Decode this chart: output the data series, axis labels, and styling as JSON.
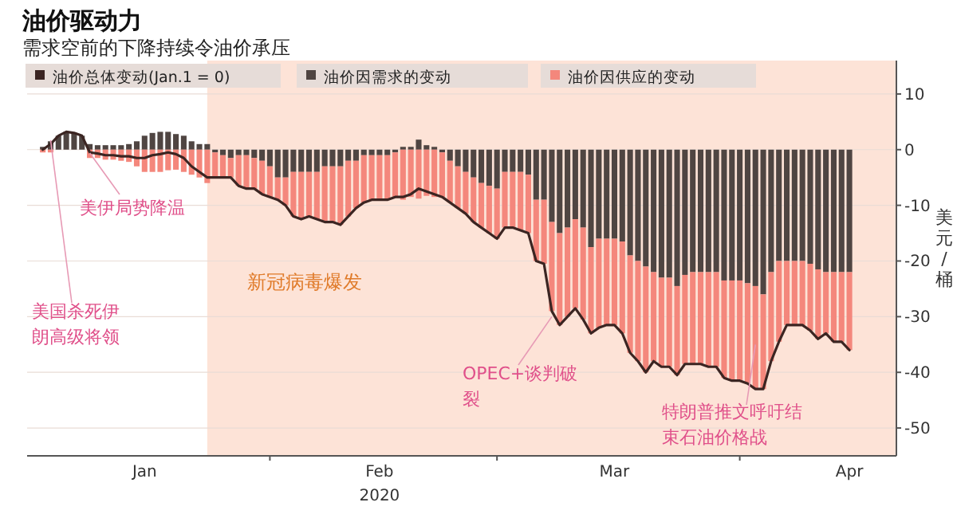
{
  "chart_data": {
    "type": "bar",
    "title": "油价驱动力",
    "subtitle": "需求空前的下降持续令油价承压",
    "xlabel": "2020",
    "ylabel": "美元/桶",
    "x": [
      "2020-01-03",
      "2020-01-04",
      "2020-01-05",
      "2020-01-06",
      "2020-01-07",
      "2020-01-08",
      "2020-01-09",
      "2020-01-10",
      "2020-01-11",
      "2020-01-12",
      "2020-01-13",
      "2020-01-14",
      "2020-01-15",
      "2020-01-16",
      "2020-01-17",
      "2020-01-18",
      "2020-01-19",
      "2020-01-20",
      "2020-01-21",
      "2020-01-22",
      "2020-01-23",
      "2020-01-24",
      "2020-01-25",
      "2020-01-26",
      "2020-01-27",
      "2020-01-28",
      "2020-01-29",
      "2020-01-30",
      "2020-01-31",
      "2020-02-01",
      "2020-02-02",
      "2020-02-03",
      "2020-02-04",
      "2020-02-05",
      "2020-02-06",
      "2020-02-07",
      "2020-02-08",
      "2020-02-09",
      "2020-02-10",
      "2020-02-11",
      "2020-02-12",
      "2020-02-13",
      "2020-02-14",
      "2020-02-15",
      "2020-02-16",
      "2020-02-17",
      "2020-02-18",
      "2020-02-19",
      "2020-02-20",
      "2020-02-21",
      "2020-02-22",
      "2020-02-23",
      "2020-02-24",
      "2020-02-25",
      "2020-02-26",
      "2020-02-27",
      "2020-02-28",
      "2020-02-29",
      "2020-03-01",
      "2020-03-02",
      "2020-03-03",
      "2020-03-04",
      "2020-03-05",
      "2020-03-06",
      "2020-03-07",
      "2020-03-08",
      "2020-03-09",
      "2020-03-10",
      "2020-03-11",
      "2020-03-12",
      "2020-03-13",
      "2020-03-14",
      "2020-03-15",
      "2020-03-16",
      "2020-03-17",
      "2020-03-18",
      "2020-03-19",
      "2020-03-20",
      "2020-03-21",
      "2020-03-22",
      "2020-03-23",
      "2020-03-24",
      "2020-03-25",
      "2020-03-26",
      "2020-03-27",
      "2020-03-28",
      "2020-03-29",
      "2020-03-30",
      "2020-03-31",
      "2020-04-01",
      "2020-04-02",
      "2020-04-03",
      "2020-04-04",
      "2020-04-05",
      "2020-04-06",
      "2020-04-07",
      "2020-04-08",
      "2020-04-09",
      "2020-04-10",
      "2020-04-11",
      "2020-04-12",
      "2020-04-13",
      "2020-04-14",
      "2020-04-15"
    ],
    "stacked": true,
    "series": [
      {
        "name": "油价因需求的变动",
        "color": "#4f4542",
        "values": [
          0.5,
          1.5,
          2.5,
          3.2,
          3,
          2.5,
          1,
          0.8,
          0.8,
          0.8,
          0.8,
          1,
          1.5,
          2.5,
          3,
          3.2,
          3.2,
          2.8,
          2.5,
          1.5,
          1,
          1,
          -0.5,
          -1,
          -1.5,
          -1,
          -1,
          -1.5,
          -2,
          -3,
          -5,
          -5,
          -4,
          -4,
          -4,
          -4,
          -3,
          -3,
          -3,
          -2,
          -2,
          -1,
          -1,
          -1,
          -1,
          -0.5,
          0.5,
          0.5,
          1.8,
          0.8,
          0.5,
          -0.5,
          -2,
          -3,
          -4,
          -5,
          -6,
          -6.5,
          -7,
          -4,
          -4,
          -4,
          -4.5,
          -9,
          -9,
          -13,
          -15,
          -14,
          -12.5,
          -14,
          -17.5,
          -16,
          -16,
          -16,
          -16.5,
          -19,
          -20,
          -21,
          -22,
          -23,
          -23,
          -24.5,
          -22.5,
          -22,
          -22,
          -22,
          -22,
          -23.5,
          -23.5,
          -23.5,
          -24,
          -24.5,
          -26,
          -22,
          -20,
          -20,
          -20,
          -20,
          -20.5,
          -21.5,
          -22,
          -22,
          -22,
          -22
        ]
      },
      {
        "name": "油价因供应的变动",
        "color": "#f4877c",
        "values": [
          -0.5,
          -0.5,
          0,
          0,
          0,
          0,
          -1.5,
          -1.5,
          -1.8,
          -1.8,
          -2,
          -2.2,
          -3,
          -4,
          -4,
          -4,
          -3.7,
          -3.6,
          -4,
          -4.5,
          -5,
          -6,
          -4.5,
          -4,
          -3.5,
          -5.5,
          -6,
          -5.5,
          -6,
          -5.5,
          -4,
          -5,
          -8,
          -8.5,
          -8,
          -8.5,
          -10,
          -10,
          -10.5,
          -10,
          -8.5,
          -8.5,
          -8,
          -8,
          -8,
          -8,
          -9,
          -8.5,
          -8.8,
          -8.3,
          -8.5,
          -8,
          -7.5,
          -7.5,
          -7.5,
          -8,
          -8,
          -8.5,
          -9,
          -10,
          -10,
          -10.5,
          -10.5,
          -11,
          -11.5,
          -16,
          -16.5,
          -16,
          -16,
          -16.5,
          -15.5,
          -16,
          -15.5,
          -15.5,
          -16.5,
          -17.5,
          -18,
          -19,
          -16,
          -16,
          -16,
          -16,
          -16,
          -16.5,
          -16.5,
          -17,
          -17,
          -17.5,
          -18,
          -18,
          -18,
          -18.5,
          -17,
          -16,
          -14.5,
          -11.5,
          -11.5,
          -11.5,
          -12,
          -12.5,
          -11,
          -12.5,
          -12.5,
          -14
        ]
      },
      {
        "name": "油价总体变动(Jan.1 = 0)",
        "type": "line",
        "color": "#3b2522",
        "values": [
          0,
          1,
          2.5,
          3.2,
          3,
          2.5,
          -0.5,
          -0.7,
          -1,
          -1,
          -1.2,
          -1.2,
          -1.5,
          -1.5,
          -1,
          -0.8,
          -0.5,
          -0.8,
          -1.5,
          -3,
          -4,
          -5,
          -5,
          -5,
          -5,
          -6.5,
          -7,
          -7,
          -8,
          -8.5,
          -9,
          -10,
          -12,
          -12.5,
          -12,
          -12.5,
          -13,
          -13,
          -13.5,
          -12,
          -10.5,
          -9.5,
          -9,
          -9,
          -9,
          -8.5,
          -8.5,
          -8,
          -7,
          -7.5,
          -8,
          -8.5,
          -9.5,
          -10.5,
          -11.5,
          -13,
          -14,
          -15,
          -16,
          -14,
          -14,
          -14.5,
          -15,
          -20,
          -20.5,
          -29,
          -31.5,
          -30,
          -28.5,
          -30.5,
          -33,
          -32,
          -31.5,
          -31.5,
          -33,
          -36.5,
          -38,
          -40,
          -38,
          -39,
          -39,
          -40.5,
          -38.5,
          -38.5,
          -38.5,
          -39,
          -39,
          -41,
          -41.5,
          -41.5,
          -42,
          -43,
          -43,
          -38,
          -34.5,
          -31.5,
          -31.5,
          -31.5,
          -32.5,
          -34,
          -33,
          -34.5,
          -34.5,
          -36
        ]
      }
    ],
    "xlim": [
      "2020-01-01",
      "2020-04-21"
    ],
    "xticks": [
      {
        "value": "2020-01-16",
        "label": "Jan"
      },
      {
        "value": "2020-02-01",
        "label": null
      },
      {
        "value": "2020-02-15",
        "label": "Feb"
      },
      {
        "value": "2020-03-01",
        "label": null
      },
      {
        "value": "2020-03-16",
        "label": "Mar"
      },
      {
        "value": "2020-04-01",
        "label": null
      },
      {
        "value": "2020-04-15",
        "label": "Apr"
      }
    ],
    "ylim": [
      -55,
      16
    ],
    "yticks": [
      10,
      0,
      -10,
      -20,
      -30,
      -40,
      -50
    ],
    "grid": "y",
    "legend": "top",
    "line_style": "solid",
    "marker": "none",
    "bands": [
      {
        "axis": "x",
        "from": "2020-01-24",
        "to": "2020-04-21",
        "label": "新冠病毒爆发",
        "color": "#fde3d7"
      }
    ],
    "annotations": [
      {
        "text": "美国杀死伊朗高级将领",
        "x": "2020-01-04",
        "y": 1.7
      },
      {
        "text": "美伊局势降温",
        "x": "2020-01-09",
        "y": -0.6
      },
      {
        "text": "OPEC+谈判破裂",
        "x": "2020-03-08",
        "y": -30
      },
      {
        "text": "特朗普推文呼吁结束石油价格战",
        "x": "2020-04-03",
        "y": -35
      }
    ]
  }
}
